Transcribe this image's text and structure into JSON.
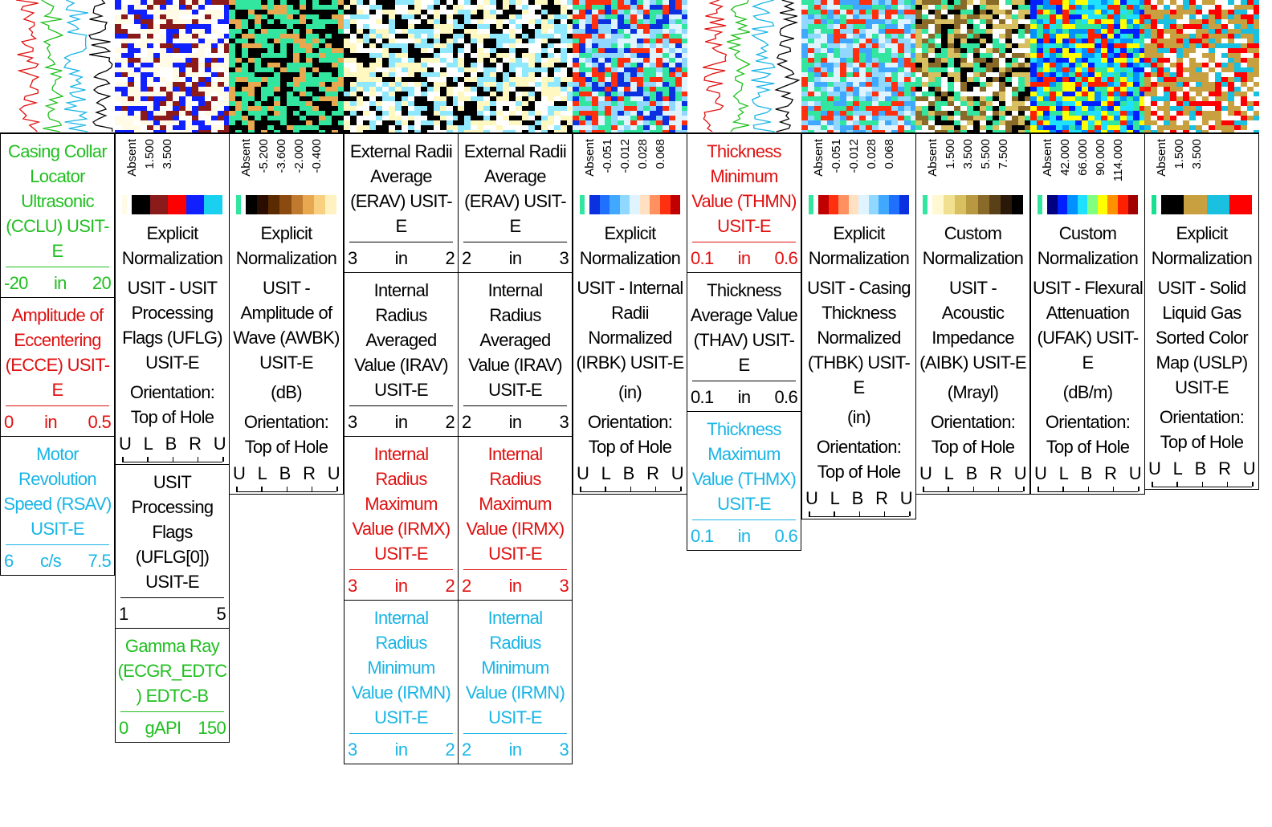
{
  "tracks": [
    {
      "blocks": [
        {
          "kind": "curve",
          "title": "Casing Collar Locator Ultrasonic (CCLU) USIT-E",
          "color": "#1fbf1f",
          "scale": [
            "-20",
            "in",
            "20"
          ]
        },
        {
          "kind": "curve",
          "title": "Amplitude of Eccentering (ECCE) USIT-E",
          "color": "#e01010",
          "scale": [
            "0",
            "in",
            "0.5"
          ]
        },
        {
          "kind": "curve",
          "title": "Motor Revolution Speed (RSAV) USIT-E",
          "color": "#19b5e6",
          "scale": [
            "6",
            "c/s",
            "7.5"
          ]
        }
      ]
    },
    {
      "blocks": [
        {
          "kind": "image",
          "labels": [
            "Absent",
            "1.500",
            "3.500"
          ],
          "colors": [
            "#fffbe6",
            "#000000",
            "#8b1a1a",
            "#ff0000",
            "#1020ff",
            "#19d0f0"
          ],
          "normalization": "Explicit Normalization",
          "description": "USIT - USIT Processing Flags (UFLG) USIT-E",
          "orientation_label": "Orientation: Top of Hole",
          "orientation_ticks": [
            "U",
            "L",
            "B",
            "R",
            "U"
          ]
        },
        {
          "kind": "curve",
          "title": "USIT Processing Flags (UFLG[0]) USIT-E",
          "color": "#000000",
          "scale": [
            "1",
            "5"
          ]
        },
        {
          "kind": "curve",
          "title": "Gamma Ray (ECGR_EDTC) EDTC-B",
          "color": "#1fbf1f",
          "scale": [
            "0",
            "gAPI",
            "150"
          ]
        }
      ]
    },
    {
      "blocks": [
        {
          "kind": "image",
          "labels": [
            "Absent",
            "-5.200",
            "-3.600",
            "-2.000",
            "-0.400"
          ],
          "colors": [
            "#33e6a0",
            "#000000",
            "#2a0c00",
            "#5a2a00",
            "#8a4a10",
            "#c07a30",
            "#e8a850",
            "#f8d080",
            "#fff2c0"
          ],
          "normalization": "Explicit Normalization",
          "description": "USIT - Amplitude of Wave (AWBK) USIT-E",
          "unit": "(dB)",
          "orientation_label": "Orientation: Top of Hole",
          "orientation_ticks": [
            "U",
            "L",
            "B",
            "R",
            "U"
          ]
        }
      ]
    },
    {
      "blocks": [
        {
          "kind": "curve",
          "title": "External Radii Average (ERAV) USIT-E",
          "color": "#000000",
          "scale": [
            "3",
            "in",
            "2"
          ]
        },
        {
          "kind": "curve",
          "title": "Internal Radius Averaged Value (IRAV) USIT-E",
          "color": "#000000",
          "scale": [
            "3",
            "in",
            "2"
          ]
        },
        {
          "kind": "curve",
          "title": "Internal Radius Maximum Value (IRMX) USIT-E",
          "color": "#e01010",
          "scale": [
            "3",
            "in",
            "2"
          ]
        },
        {
          "kind": "curve",
          "title": "Internal Radius Minimum Value (IRMN) USIT-E",
          "color": "#19b5e6",
          "scale": [
            "3",
            "in",
            "2"
          ]
        }
      ]
    },
    {
      "blocks": [
        {
          "kind": "curve",
          "title": "External Radii Average (ERAV) USIT-E",
          "color": "#000000",
          "scale": [
            "2",
            "in",
            "3"
          ]
        },
        {
          "kind": "curve",
          "title": "Internal Radius Averaged Value (IRAV) USIT-E",
          "color": "#000000",
          "scale": [
            "2",
            "in",
            "3"
          ]
        },
        {
          "kind": "curve",
          "title": "Internal Radius Maximum Value (IRMX) USIT-E",
          "color": "#e01010",
          "scale": [
            "2",
            "in",
            "3"
          ]
        },
        {
          "kind": "curve",
          "title": "Internal Radius Minimum Value (IRMN) USIT-E",
          "color": "#19b5e6",
          "scale": [
            "2",
            "in",
            "3"
          ]
        }
      ]
    },
    {
      "blocks": [
        {
          "kind": "image",
          "labels": [
            "Absent",
            "-0.051",
            "-0.012",
            "0.028",
            "0.068"
          ],
          "colors": [
            "#33e6a0",
            "#0a30e0",
            "#2070ff",
            "#40a8ff",
            "#90d8ff",
            "#e0f4ff",
            "#ffe0c0",
            "#ff9060",
            "#ff3010",
            "#c00000"
          ],
          "normalization": "Explicit Normalization",
          "description": "USIT - Internal Radii Normalized (IRBK) USIT-E",
          "unit": "(in)",
          "orientation_label": "Orientation: Top of Hole",
          "orientation_ticks": [
            "U",
            "L",
            "B",
            "R",
            "U"
          ]
        }
      ]
    },
    {
      "blocks": [
        {
          "kind": "curve",
          "title": "Thickness Minimum Value (THMN) USIT-E",
          "color": "#e01010",
          "scale": [
            "0.1",
            "in",
            "0.6"
          ]
        },
        {
          "kind": "curve",
          "title": "Thickness Average Value (THAV) USIT-E",
          "color": "#000000",
          "scale": [
            "0.1",
            "in",
            "0.6"
          ]
        },
        {
          "kind": "curve",
          "title": "Thickness Maximum Value (THMX) USIT-E",
          "color": "#19b5e6",
          "scale": [
            "0.1",
            "in",
            "0.6"
          ]
        }
      ]
    },
    {
      "blocks": [
        {
          "kind": "image",
          "labels": [
            "Absent",
            "-0.051",
            "-0.012",
            "0.028",
            "0.068"
          ],
          "colors": [
            "#33e6a0",
            "#c00000",
            "#ff3010",
            "#ff9060",
            "#ffe0c0",
            "#e0f4ff",
            "#90d8ff",
            "#40a8ff",
            "#2070ff",
            "#0a30e0"
          ],
          "normalization": "Explicit Normalization",
          "description": "USIT - Casing Thickness Normalized (THBK) USIT-E",
          "unit": "(in)",
          "orientation_label": "Orientation: Top of Hole",
          "orientation_ticks": [
            "U",
            "L",
            "B",
            "R",
            "U"
          ]
        }
      ]
    },
    {
      "blocks": [
        {
          "kind": "image",
          "labels": [
            "Absent",
            "1.500",
            "3.500",
            "5.500",
            "7.500"
          ],
          "colors": [
            "#33e6a0",
            "#fff8d0",
            "#f0e090",
            "#d8c060",
            "#b89840",
            "#8a6a28",
            "#5a4018",
            "#2a1808",
            "#000000"
          ],
          "normalization": "Custom Normalization",
          "description": "USIT - Acoustic Impedance (AIBK) USIT-E",
          "unit": "(Mrayl)",
          "orientation_label": "Orientation: Top of Hole",
          "orientation_ticks": [
            "U",
            "L",
            "B",
            "R",
            "U"
          ]
        }
      ]
    },
    {
      "blocks": [
        {
          "kind": "image",
          "labels": [
            "Absent",
            "42.000",
            "66.000",
            "90.000",
            "114.000"
          ],
          "colors": [
            "#33e6a0",
            "#000080",
            "#0020ff",
            "#0090ff",
            "#20e0ff",
            "#80ff80",
            "#ffff00",
            "#ff9000",
            "#ff2000",
            "#a00000"
          ],
          "normalization": "Custom Normalization",
          "description": "USIT - Flexural Attenuation (UFAK) USIT-E",
          "unit": "(dB/m)",
          "orientation_label": "Orientation: Top of Hole",
          "orientation_ticks": [
            "U",
            "L",
            "B",
            "R",
            "U"
          ]
        }
      ]
    },
    {
      "blocks": [
        {
          "kind": "image",
          "labels": [
            "Absent",
            "1.500",
            "3.500"
          ],
          "colors": [
            "#19e090",
            "#000000",
            "#c8a040",
            "#19c0e0",
            "#ff0000"
          ],
          "normalization": "Explicit Normalization",
          "description": "USIT - Solid Liquid Gas Sorted Color Map (USLP) USIT-E",
          "orientation_label": "Orientation: Top of Hole",
          "orientation_ticks": [
            "U",
            "L",
            "B",
            "R",
            "U"
          ]
        }
      ]
    }
  ]
}
